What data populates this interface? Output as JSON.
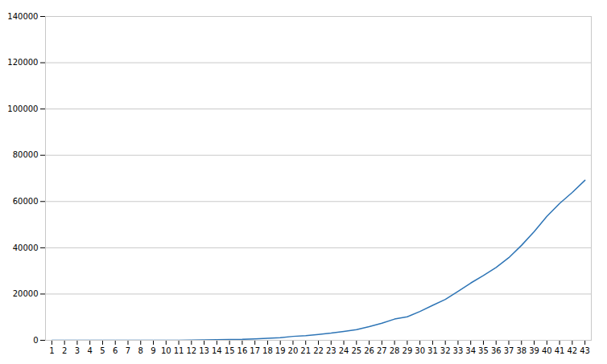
{
  "chart_data": {
    "type": "line",
    "x": [
      1,
      2,
      3,
      4,
      5,
      6,
      7,
      8,
      9,
      10,
      11,
      12,
      13,
      14,
      15,
      16,
      17,
      18,
      19,
      20,
      21,
      22,
      23,
      24,
      25,
      26,
      27,
      28,
      29,
      30,
      31,
      32,
      33,
      34,
      35,
      36,
      37,
      38,
      39,
      40,
      41,
      42,
      43
    ],
    "values": [
      2,
      2,
      3,
      3,
      3,
      3,
      3,
      3,
      9,
      20,
      36,
      62,
      155,
      229,
      322,
      400,
      650,
      888,
      1128,
      1694,
      2036,
      2502,
      3089,
      3858,
      4636,
      5883,
      7375,
      9172,
      10149,
      12462,
      15113,
      17660,
      21157,
      24747,
      27980,
      31506,
      35713,
      41035,
      47021,
      53578,
      59138,
      63927,
      69176
    ],
    "color": "#2E75B6",
    "xlim": [
      0.5,
      43.5
    ],
    "xticks": [
      1,
      2,
      3,
      4,
      5,
      6,
      7,
      8,
      9,
      10,
      11,
      12,
      13,
      14,
      15,
      16,
      17,
      18,
      19,
      20,
      21,
      22,
      23,
      24,
      25,
      26,
      27,
      28,
      29,
      30,
      31,
      32,
      33,
      34,
      35,
      36,
      37,
      38,
      39,
      40,
      41,
      42,
      43
    ],
    "ylim": [
      0,
      140000
    ],
    "yticks": [
      0,
      20000,
      40000,
      60000,
      80000,
      100000,
      120000,
      140000
    ],
    "grid": "y"
  }
}
